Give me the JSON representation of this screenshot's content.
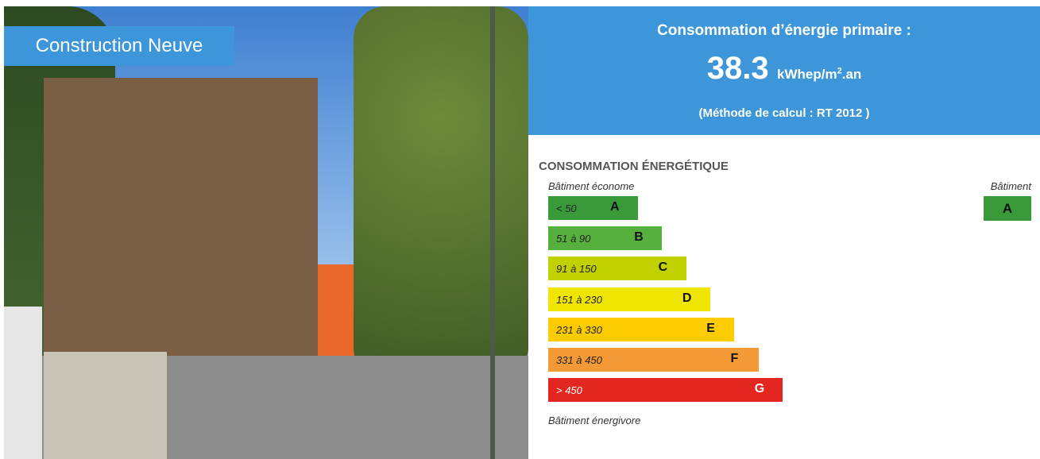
{
  "photo_badge": "Construction Neuve",
  "header": {
    "title": "Consommation d’énergie primaire :",
    "value": "38.3",
    "unit_prefix": "kWhep/m",
    "unit_sup": "2",
    "unit_suffix": ".an",
    "method": "(Méthode de calcul : RT 2012 )"
  },
  "label": {
    "title": "CONSOMMATION ÉNERGÉTIQUE",
    "top_note": "Bâtiment économe",
    "bottom_note": "Bâtiment énergivore",
    "building_caption": "Bâtiment",
    "building_class": "A",
    "classes": [
      {
        "range": "< 50",
        "letter": "A"
      },
      {
        "range": "51 à 90",
        "letter": "B"
      },
      {
        "range": "91 à 150",
        "letter": "C"
      },
      {
        "range": "151 à 230",
        "letter": "D"
      },
      {
        "range": "231 à 330",
        "letter": "E"
      },
      {
        "range": "331 à 450",
        "letter": "F"
      },
      {
        "range": "> 450",
        "letter": "G"
      }
    ]
  }
}
